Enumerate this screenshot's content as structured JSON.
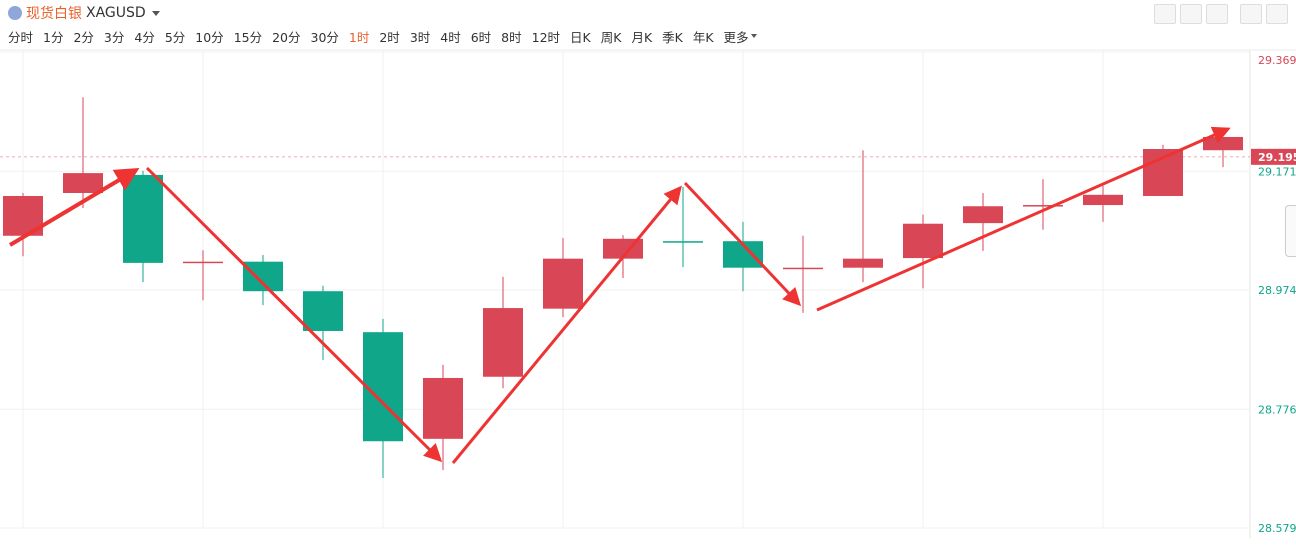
{
  "header": {
    "title": "现货白银",
    "symbol": "XAGUSD",
    "intervals": [
      "分时",
      "1分",
      "2分",
      "3分",
      "4分",
      "5分",
      "10分",
      "15分",
      "20分",
      "30分",
      "1时",
      "2时",
      "3时",
      "4时",
      "6时",
      "8时",
      "12时",
      "日K",
      "周K",
      "月K",
      "季K",
      "年K"
    ],
    "active_index": 10,
    "more": "更多"
  },
  "chart_data": {
    "type": "candlestick",
    "open": [
      29.064,
      29.135,
      29.165,
      29.019,
      29.021,
      28.972,
      28.904,
      28.727,
      28.83,
      28.943,
      29.026,
      29.055,
      29.055,
      29.009,
      29.011,
      29.027,
      29.085,
      29.113,
      29.115,
      29.13,
      29.206
    ],
    "high": [
      29.135,
      29.294,
      29.172,
      29.04,
      29.032,
      28.981,
      28.926,
      28.85,
      28.996,
      29.06,
      29.065,
      29.145,
      29.087,
      29.064,
      29.206,
      29.099,
      29.135,
      29.158,
      29.147,
      29.215,
      29.228
    ],
    "low": [
      29.03,
      29.11,
      28.987,
      28.957,
      28.949,
      28.858,
      28.662,
      28.675,
      28.811,
      28.929,
      28.994,
      29.012,
      28.972,
      28.936,
      28.987,
      28.977,
      29.039,
      29.074,
      29.087,
      29.13,
      29.178
    ],
    "close": [
      29.13,
      29.168,
      29.019,
      29.021,
      28.972,
      28.906,
      28.723,
      28.828,
      28.944,
      29.026,
      29.059,
      29.054,
      29.011,
      29.011,
      29.026,
      29.084,
      29.113,
      29.115,
      29.132,
      29.208,
      29.228
    ],
    "up_color": "#d94656",
    "down_color": "#0fa68a",
    "ylim": [
      28.579,
      29.369
    ],
    "yticks": [
      28.579,
      28.776,
      28.974,
      29.171,
      29.369
    ],
    "grid": true,
    "current_price": 29.195
  }
}
